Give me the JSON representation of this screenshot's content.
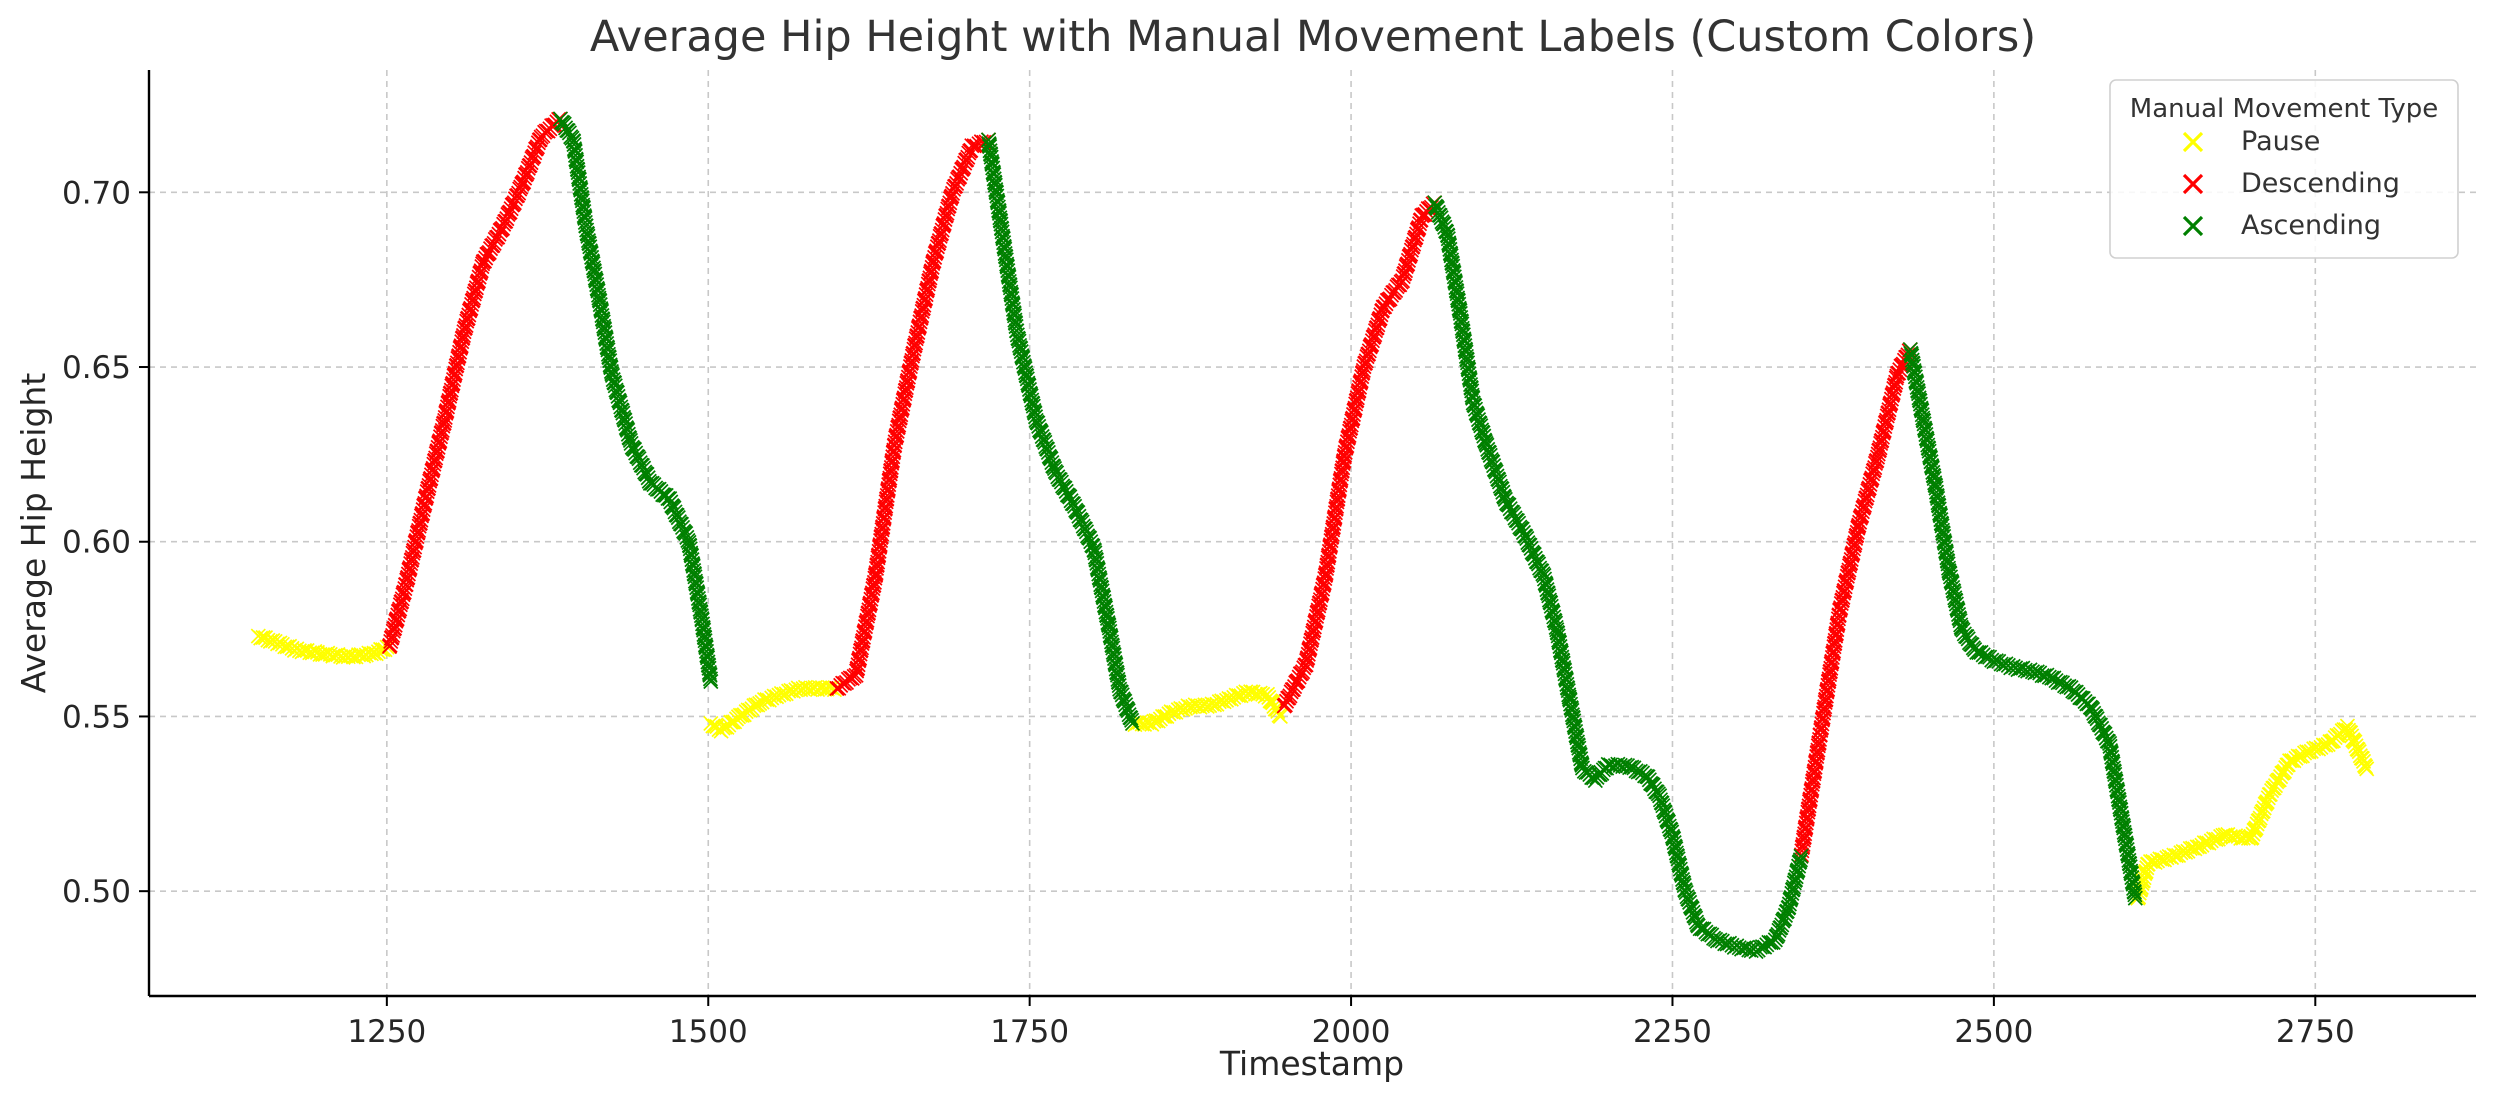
{
  "chart_data": {
    "type": "scatter",
    "title": "Average Hip Height with Manual Movement Labels (Custom Colors)",
    "xlabel": "Timestamp",
    "ylabel": "Average Hip Height",
    "xlim": [
      1065,
      2875
    ],
    "ylim": [
      0.47,
      0.735
    ],
    "xticks": [
      1250,
      1500,
      1750,
      2000,
      2250,
      2500,
      2750
    ],
    "yticks": [
      0.5,
      0.55,
      0.6,
      0.65,
      0.7
    ],
    "xtick_labels": [
      "1250",
      "1500",
      "1750",
      "2000",
      "2250",
      "2500",
      "2750"
    ],
    "ytick_labels": [
      "0.50",
      "0.55",
      "0.60",
      "0.65",
      "0.70"
    ],
    "grid": true,
    "marker": "x",
    "legend": {
      "title": "Manual Movement Type",
      "position": "top-right",
      "entries": [
        {
          "label": "Pause",
          "color": "#FFFF00"
        },
        {
          "label": "Descending",
          "color": "#FF0000"
        },
        {
          "label": "Ascending",
          "color": "#008000"
        }
      ]
    },
    "series": [
      {
        "name": "Pause",
        "color": "#FFFF00",
        "segments": [
          {
            "x": [
              1150,
              1165,
              1180,
              1200,
              1220,
              1240,
              1252
            ],
            "y": [
              0.573,
              0.571,
              0.569,
              0.568,
              0.567,
              0.568,
              0.57
            ]
          },
          {
            "x": [
              1502,
              1510,
              1525,
              1540,
              1555,
              1570,
              1585,
              1600
            ],
            "y": [
              0.548,
              0.546,
              0.55,
              0.554,
              0.556,
              0.558,
              0.558,
              0.558
            ]
          },
          {
            "x": [
              1830,
              1845,
              1860,
              1875,
              1890,
              1905,
              1920,
              1935,
              1945
            ],
            "y": [
              0.548,
              0.548,
              0.551,
              0.553,
              0.553,
              0.555,
              0.557,
              0.556,
              0.55
            ]
          },
          {
            "x": [
              2612,
              2620,
              2640,
              2660,
              2680,
              2700,
              2715,
              2730,
              2745,
              2760,
              2775,
              2790
            ],
            "y": [
              0.498,
              0.508,
              0.51,
              0.513,
              0.516,
              0.515,
              0.528,
              0.537,
              0.54,
              0.542,
              0.547,
              0.535
            ]
          }
        ]
      },
      {
        "name": "Descending",
        "color": "#FF0000",
        "segments": [
          {
            "x": [
              1252,
              1265,
              1280,
              1295,
              1310,
              1325,
              1340,
              1355,
              1370,
              1385
            ],
            "y": [
              0.57,
              0.588,
              0.612,
              0.635,
              0.66,
              0.68,
              0.69,
              0.702,
              0.716,
              0.721
            ]
          },
          {
            "x": [
              1600,
              1615,
              1630,
              1645,
              1660,
              1675,
              1690,
              1705,
              1718
            ],
            "y": [
              0.558,
              0.562,
              0.59,
              0.628,
              0.655,
              0.68,
              0.7,
              0.713,
              0.715
            ]
          },
          {
            "x": [
              1948,
              1965,
              1980,
              1995,
              2010,
              2025,
              2040,
              2055,
              2065
            ],
            "y": [
              0.553,
              0.565,
              0.59,
              0.625,
              0.65,
              0.667,
              0.675,
              0.693,
              0.697
            ]
          },
          {
            "x": [
              2350,
              2365,
              2380,
              2395,
              2410,
              2425,
              2435
            ],
            "y": [
              0.51,
              0.545,
              0.58,
              0.605,
              0.625,
              0.648,
              0.655
            ]
          }
        ]
      },
      {
        "name": "Ascending",
        "color": "#008000",
        "segments": [
          {
            "x": [
              1385,
              1395,
              1405,
              1415,
              1425,
              1440,
              1455,
              1470,
              1485,
              1495,
              1502
            ],
            "y": [
              0.721,
              0.715,
              0.69,
              0.67,
              0.648,
              0.628,
              0.617,
              0.612,
              0.6,
              0.578,
              0.56
            ]
          },
          {
            "x": [
              1718,
              1728,
              1740,
              1755,
              1770,
              1785,
              1800,
              1812,
              1820,
              1830
            ],
            "y": [
              0.715,
              0.69,
              0.66,
              0.635,
              0.62,
              0.61,
              0.598,
              0.575,
              0.558,
              0.548
            ]
          },
          {
            "x": [
              2065,
              2075,
              2085,
              2095,
              2105,
              2120,
              2135,
              2150,
              2160,
              2170,
              2180,
              2190,
              2200,
              2215,
              2230,
              2240,
              2250,
              2260,
              2270,
              2285,
              2300,
              2315,
              2330,
              2340,
              2350
            ],
            "y": [
              0.697,
              0.688,
              0.665,
              0.64,
              0.628,
              0.612,
              0.602,
              0.59,
              0.575,
              0.555,
              0.535,
              0.532,
              0.536,
              0.536,
              0.533,
              0.527,
              0.516,
              0.5,
              0.49,
              0.486,
              0.484,
              0.483,
              0.486,
              0.495,
              0.51
            ]
          },
          {
            "x": [
              2435,
              2445,
              2455,
              2465,
              2475,
              2485,
              2500,
              2515,
              2530,
              2545,
              2560,
              2575,
              2590,
              2600,
              2610
            ],
            "y": [
              0.655,
              0.635,
              0.615,
              0.592,
              0.575,
              0.569,
              0.566,
              0.564,
              0.563,
              0.561,
              0.558,
              0.553,
              0.542,
              0.52,
              0.498
            ]
          }
        ]
      }
    ]
  }
}
